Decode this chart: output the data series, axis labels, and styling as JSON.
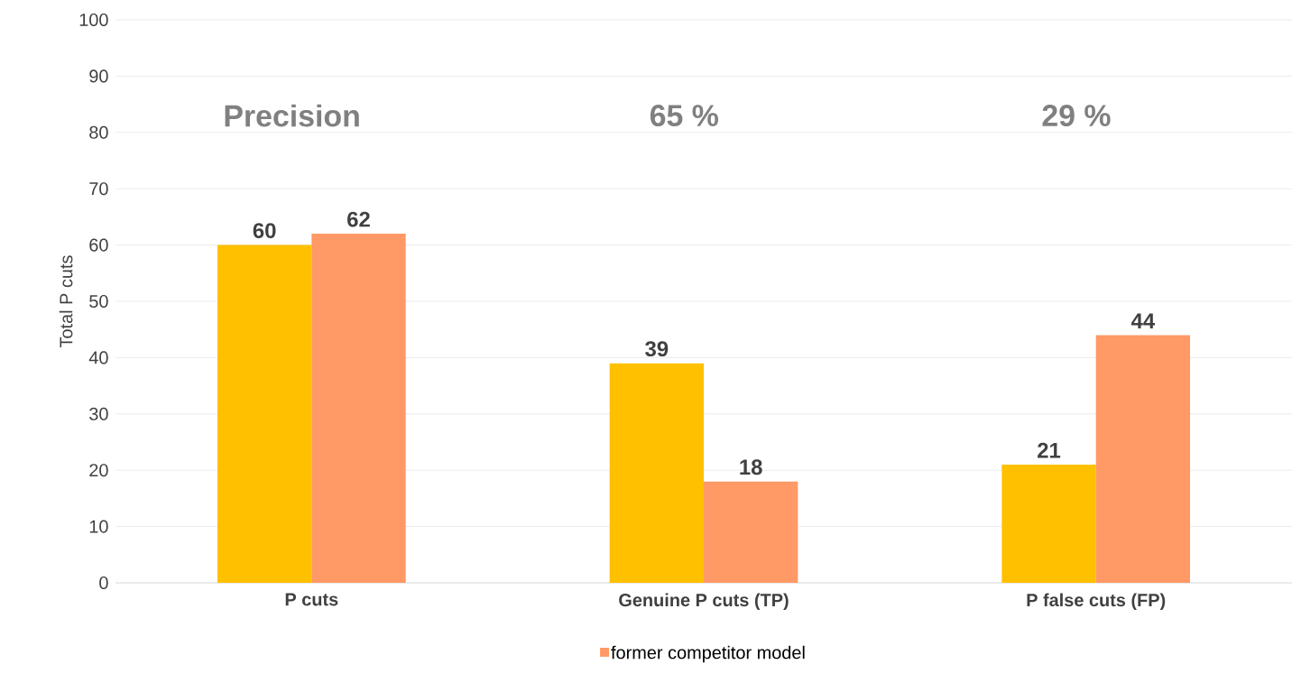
{
  "chart_data": {
    "type": "bar",
    "ylabel": "Total P cuts",
    "categories": [
      "P cuts",
      "Genuine P cuts (TP)",
      "P false cuts (FP)"
    ],
    "series": [
      {
        "color": "#ffc000",
        "values": [
          60,
          39,
          21
        ]
      },
      {
        "name": "former competitor model",
        "color": "#ff9966",
        "values": [
          62,
          18,
          44
        ]
      }
    ],
    "ylim": [
      0,
      100
    ],
    "yticks": [
      0,
      10,
      20,
      30,
      40,
      50,
      60,
      70,
      80,
      90,
      100
    ],
    "grid": "y",
    "legend": "bottom",
    "data_labels": true,
    "annotations": [
      "Precision",
      "65 %",
      "29 %"
    ]
  }
}
